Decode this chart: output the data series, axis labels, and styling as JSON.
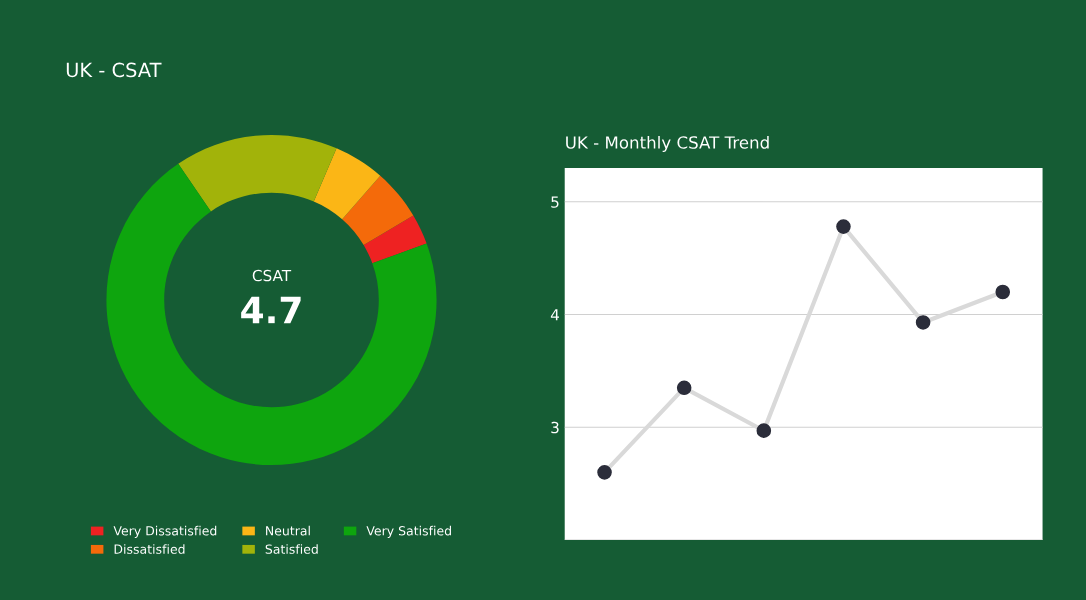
{
  "chart_data": [
    {
      "type": "donut",
      "title": "UK - CSAT",
      "categories": [
        "Very Dissatisfied",
        "Dissatisfied",
        "Neutral",
        "Satisfied",
        "Very Satisfied"
      ],
      "values": [
        3,
        5,
        5,
        16,
        71
      ],
      "colors": [
        "#ee2222",
        "#f46a0a",
        "#fbb616",
        "#a2b30a",
        "#0ea50e"
      ],
      "annotations": [
        "CSAT",
        "4.7"
      ],
      "legend": "bottom"
    },
    {
      "type": "line",
      "title": "UK - Monthly CSAT Trend",
      "categories": [
        null,
        null,
        null,
        null,
        null,
        null
      ],
      "series": [
        {
          "color": "#d9d9d9",
          "values": [
            2.6,
            3.35,
            2.97,
            4.78,
            3.93,
            4.2
          ]
        }
      ],
      "ylim": [
        2,
        5.3
      ],
      "yticks": [
        {
          "value": 2,
          "label": null
        },
        3,
        4,
        5
      ],
      "grid": "y",
      "marker": "circle",
      "legend": false
    }
  ]
}
